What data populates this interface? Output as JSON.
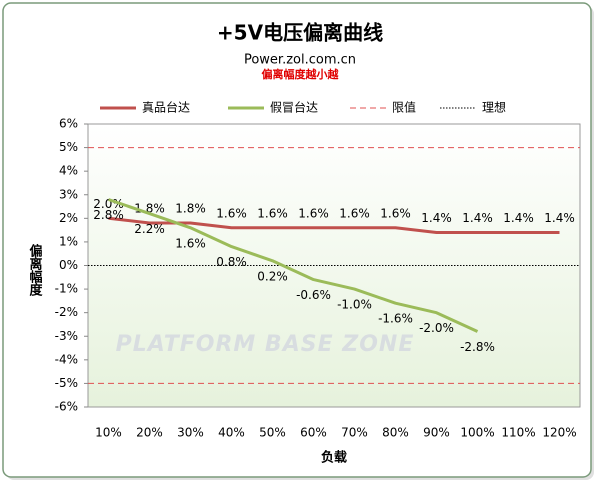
{
  "chart_data": {
    "type": "line",
    "title": "+5V电压偏离曲线",
    "subtitle": "Power.zol.com.cn",
    "subtitle2": "偏离幅度越小越",
    "watermark": "PLATFORM BASE ZONE",
    "x_label": "负载",
    "y_label": "偏离幅度",
    "categories": [
      "10%",
      "20%",
      "30%",
      "40%",
      "50%",
      "60%",
      "70%",
      "80%",
      "90%",
      "100%",
      "110%",
      "120%"
    ],
    "series": [
      {
        "name": "真品台达",
        "color": "#c0504d",
        "values": [
          2.0,
          1.8,
          1.8,
          1.6,
          1.6,
          1.6,
          1.6,
          1.6,
          1.4,
          1.4,
          1.4,
          1.4
        ],
        "value_labels": [
          "2.0%",
          "1.8%",
          "1.8%",
          "1.6%",
          "1.6%",
          "1.6%",
          "1.6%",
          "1.6%",
          "1.4%",
          "1.4%",
          "1.4%",
          "1.4%"
        ]
      },
      {
        "name": "假冒台达",
        "color": "#9bbb59",
        "values": [
          2.8,
          2.2,
          1.6,
          0.8,
          0.2,
          -0.6,
          -1.0,
          -1.6,
          -2.0,
          -2.8,
          null,
          null
        ],
        "value_labels": [
          "2.8%",
          "2.2%",
          "1.6%",
          "0.8%",
          "0.2%",
          "-0.6%",
          "-1.0%",
          "-1.6%",
          "-2.0%",
          "-2.8%",
          null,
          null
        ]
      }
    ],
    "reference_lines": [
      {
        "name": "限值",
        "color": "#e05050",
        "style": "dashed",
        "values": [
          5,
          -5
        ]
      },
      {
        "name": "理想",
        "color": "#000000",
        "style": "dotted",
        "values": [
          0
        ]
      }
    ],
    "ylim": [
      -6,
      6
    ],
    "yticks": [
      {
        "value": -6,
        "label": "-6%"
      },
      {
        "value": -5,
        "label": "-5%"
      },
      {
        "value": -4,
        "label": "-4%"
      },
      {
        "value": -3,
        "label": "-3%"
      },
      {
        "value": -2,
        "label": "-2%"
      },
      {
        "value": -1,
        "label": "-1%"
      },
      {
        "value": 0,
        "label": "0%"
      },
      {
        "value": 1,
        "label": "1%"
      },
      {
        "value": 2,
        "label": "2%"
      },
      {
        "value": 3,
        "label": "3%"
      },
      {
        "value": 4,
        "label": "4%"
      },
      {
        "value": 5,
        "label": "5%"
      },
      {
        "value": 6,
        "label": "6%"
      }
    ],
    "grid": false
  }
}
